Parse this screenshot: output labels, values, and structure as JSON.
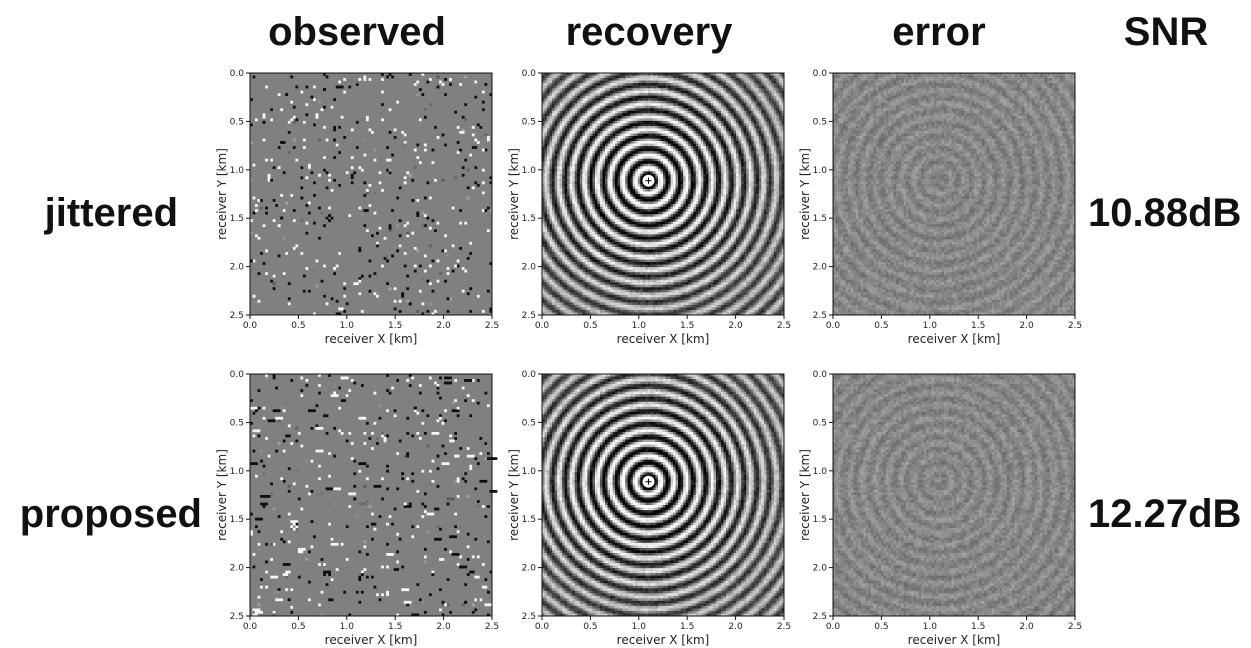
{
  "column_headers": [
    "observed",
    "recovery",
    "error",
    "SNR"
  ],
  "rows": [
    {
      "label": "jittered",
      "snr": "10.88dB"
    },
    {
      "label": "proposed",
      "snr": "12.27dB"
    }
  ],
  "axes": {
    "xlabel": "receiver X [km]",
    "ylabel": "receiver Y [km]",
    "x_ticks": [
      "0.0",
      "0.5",
      "1.0",
      "1.5",
      "2.0",
      "2.5"
    ],
    "y_ticks": [
      "0.0",
      "0.5",
      "1.0",
      "1.5",
      "2.0",
      "2.5"
    ],
    "range_km": [
      0,
      2.5
    ]
  },
  "panels": [
    {
      "row": 0,
      "col": 0,
      "kind": "observed-sparse"
    },
    {
      "row": 0,
      "col": 1,
      "kind": "recovery-rings"
    },
    {
      "row": 0,
      "col": 2,
      "kind": "error-residual"
    },
    {
      "row": 1,
      "col": 0,
      "kind": "observed-sparse"
    },
    {
      "row": 1,
      "col": 1,
      "kind": "recovery-rings"
    },
    {
      "row": 1,
      "col": 2,
      "kind": "error-residual"
    }
  ],
  "colors": {
    "gray_background": "#808080",
    "text": "#111111"
  }
}
